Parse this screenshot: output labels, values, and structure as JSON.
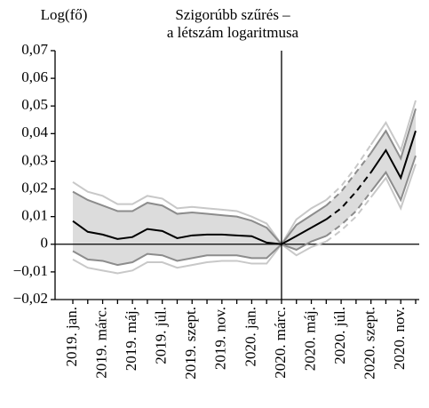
{
  "chart_data": {
    "type": "line",
    "title_lines": [
      "Szigorúbb szűrés –",
      "a létszám logaritmusa"
    ],
    "ylabel": "Log(fő)",
    "categories": [
      "2019. jan.",
      null,
      "2019. márc.",
      null,
      "2019. máj.",
      null,
      "2019. júl.",
      null,
      "2019. szept.",
      null,
      "2019. nov.",
      null,
      "2020. jan.",
      null,
      "2020. márc.",
      null,
      "2020. máj.",
      null,
      "2020. júl.",
      null,
      "2020. szept.",
      null,
      "2020. nov.",
      null
    ],
    "ylim": [
      -0.02,
      0.07
    ],
    "yticks": [
      {
        "value": -0.02,
        "label": "−0,02"
      },
      {
        "value": -0.01,
        "label": "−0,01"
      },
      0,
      {
        "value": 0.01,
        "label": "0,01"
      },
      {
        "value": 0.02,
        "label": "0,02"
      },
      {
        "value": 0.03,
        "label": "0,03"
      },
      {
        "value": 0.04,
        "label": "0,04"
      },
      {
        "value": 0.05,
        "label": "0,05"
      },
      {
        "value": 0.06,
        "label": "0,06"
      },
      {
        "value": 0.07,
        "label": "0,07"
      }
    ],
    "hline": 0,
    "vline": "2020. márc.",
    "band_color": "#dcdcdc",
    "series": [
      {
        "color": "#c8c8c8",
        "values": [
          0.0225,
          0.019,
          0.0175,
          0.0145,
          0.0145,
          0.0175,
          0.0165,
          0.013,
          0.0135,
          0.013,
          0.0125,
          0.012,
          0.01,
          0.0075,
          0,
          0.009,
          0.013,
          0.016,
          null,
          null,
          0.036,
          0.044,
          0.034,
          0.052
        ]
      },
      {
        "color": "#c8c8c8",
        "values": [
          -0.0055,
          -0.0085,
          -0.0095,
          -0.0105,
          -0.0095,
          -0.0065,
          -0.0065,
          -0.0085,
          -0.0075,
          -0.0065,
          -0.006,
          -0.006,
          -0.007,
          -0.007,
          0,
          -0.004,
          -0.001,
          0.001,
          null,
          null,
          0.017,
          0.024,
          0.013,
          0.029
        ]
      },
      {
        "color": "#8c8c8c",
        "band": "upper",
        "values": [
          0.019,
          0.016,
          0.014,
          0.012,
          0.012,
          0.015,
          0.014,
          0.011,
          0.0115,
          0.011,
          0.0105,
          0.01,
          0.0085,
          0.006,
          0,
          0.007,
          0.0105,
          0.014,
          null,
          null,
          0.033,
          0.041,
          0.031,
          0.049
        ]
      },
      {
        "color": "#8c8c8c",
        "band": "lower",
        "values": [
          -0.0025,
          -0.0055,
          -0.006,
          -0.0075,
          -0.0065,
          -0.0035,
          -0.004,
          -0.006,
          -0.005,
          -0.004,
          -0.004,
          -0.004,
          -0.005,
          -0.005,
          0,
          -0.002,
          0.001,
          0.003,
          null,
          null,
          0.019,
          0.026,
          0.016,
          0.032
        ]
      },
      {
        "color": "#000000",
        "values": [
          0.0084,
          0.0045,
          0.0035,
          0.0019,
          0.0026,
          0.0055,
          0.0048,
          0.0022,
          0.0032,
          0.0035,
          0.0035,
          0.0032,
          0.0029,
          0.0006,
          0,
          0.003,
          0.006,
          0.009,
          null,
          null,
          0.026,
          0.034,
          0.024,
          0.041
        ]
      },
      {
        "color": "#c8c8c8",
        "dash": true,
        "values": [
          null,
          null,
          null,
          null,
          null,
          null,
          null,
          null,
          null,
          null,
          null,
          null,
          null,
          null,
          null,
          null,
          null,
          0.016,
          0.021,
          0.028,
          0.036,
          null,
          null,
          null
        ]
      },
      {
        "color": "#c8c8c8",
        "dash": true,
        "values": [
          null,
          null,
          null,
          null,
          null,
          null,
          null,
          null,
          null,
          null,
          null,
          null,
          null,
          null,
          null,
          null,
          null,
          0.001,
          0.005,
          0.01,
          0.017,
          null,
          null,
          null
        ]
      },
      {
        "color": "#8c8c8c",
        "dash": true,
        "band": "upper",
        "values": [
          null,
          null,
          null,
          null,
          null,
          null,
          null,
          null,
          null,
          null,
          null,
          null,
          null,
          null,
          null,
          null,
          null,
          0.014,
          0.019,
          0.026,
          0.033,
          null,
          null,
          null
        ]
      },
      {
        "color": "#8c8c8c",
        "dash": true,
        "band": "lower",
        "values": [
          null,
          null,
          null,
          null,
          null,
          null,
          null,
          null,
          null,
          null,
          null,
          null,
          null,
          null,
          null,
          null,
          null,
          0.003,
          0.007,
          0.012,
          0.019,
          null,
          null,
          null
        ]
      },
      {
        "color": "#000000",
        "dash": true,
        "values": [
          null,
          null,
          null,
          null,
          null,
          null,
          null,
          null,
          null,
          null,
          null,
          null,
          null,
          null,
          null,
          null,
          null,
          0.009,
          0.013,
          0.019,
          0.026,
          null,
          null,
          null
        ]
      }
    ]
  }
}
